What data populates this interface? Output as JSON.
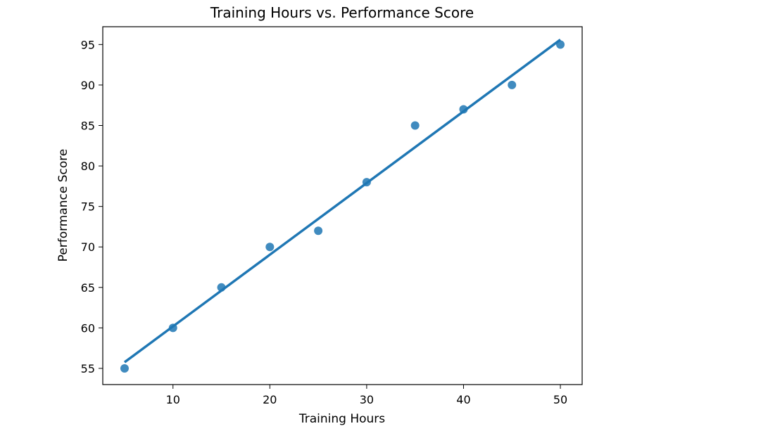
{
  "chart_data": {
    "type": "scatter",
    "title": "Training Hours vs. Performance Score",
    "xlabel": "Training Hours",
    "ylabel": "Performance Score",
    "xlim": [
      2.75,
      52.25
    ],
    "ylim": [
      53,
      97.2
    ],
    "x_ticks": [
      10,
      20,
      30,
      40,
      50
    ],
    "y_ticks": [
      55,
      60,
      65,
      70,
      75,
      80,
      85,
      90,
      95
    ],
    "grid": false,
    "legend": "none",
    "series": [
      {
        "x": [
          5,
          10,
          15,
          20,
          25,
          30,
          35,
          40,
          45,
          50
        ],
        "y": [
          55,
          60,
          65,
          70,
          72,
          78,
          85,
          87,
          90,
          95
        ],
        "color": "#1f77b4"
      }
    ],
    "trendline": {
      "type": "linear",
      "x": [
        5,
        50
      ],
      "y": [
        55.76,
        95.6
      ],
      "color": "#1f77b4"
    }
  }
}
